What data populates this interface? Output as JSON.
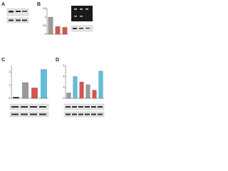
{
  "panels": [
    "A",
    "B",
    "C",
    "D"
  ],
  "chart_data": [
    {
      "type": "bar",
      "categories": [
        null,
        null,
        null
      ],
      "values": [
        1,
        0.45,
        0.4
      ],
      "colors": [
        "#9a9a9a",
        "#d9534f",
        "#d9534f"
      ],
      "ylim": [
        0,
        1.5
      ],
      "yticks": [
        0,
        0.5,
        1,
        1.5
      ]
    },
    {
      "type": "bar",
      "categories": [
        null,
        null,
        null,
        null
      ],
      "values": [
        0.1,
        1.2,
        0.8,
        2.2
      ],
      "colors": [
        "#333333",
        "#9a9a9a",
        "#d9534f",
        "#5bc0de"
      ],
      "ylim": [
        0,
        2.5
      ],
      "yticks": [
        0,
        1,
        2
      ]
    },
    {
      "type": "bar",
      "categories": [
        null,
        null,
        null,
        null,
        null,
        null
      ],
      "values": [
        1,
        4,
        3,
        2.5,
        1.5,
        5
      ],
      "colors": [
        "#9a9a9a",
        "#5bc0de",
        "#d9534f",
        "#9a9a9a",
        "#d9534f",
        "#5bc0de"
      ],
      "ylim": [
        0,
        6
      ],
      "yticks": [
        0,
        2,
        4,
        6
      ]
    }
  ]
}
